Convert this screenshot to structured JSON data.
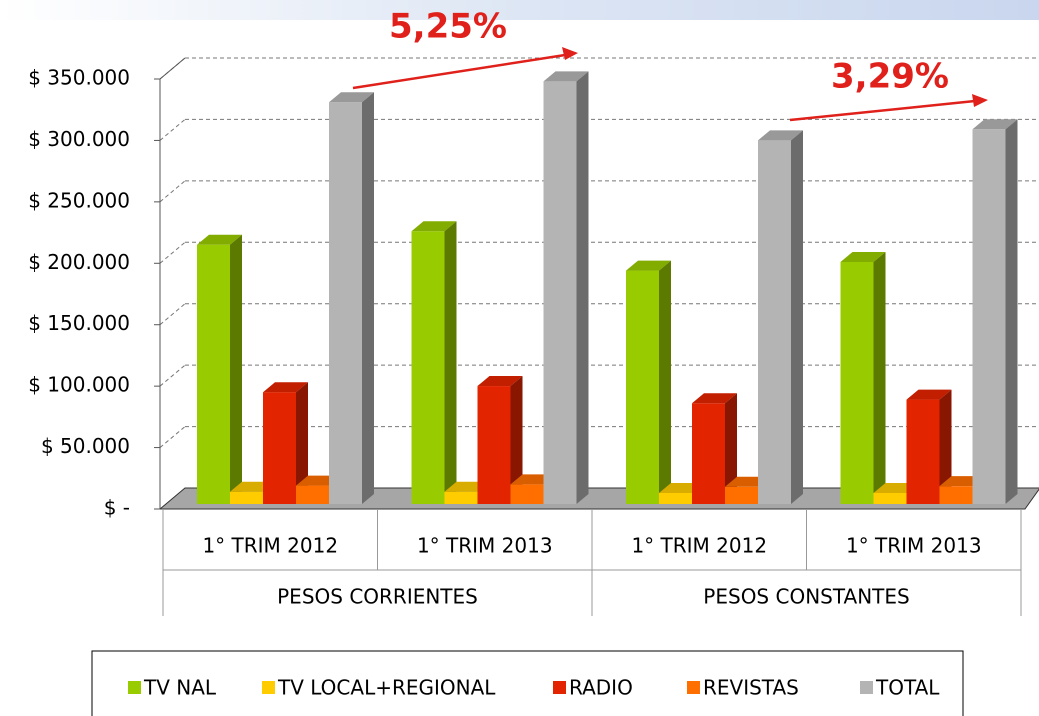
{
  "chart_data": {
    "type": "bar3d",
    "categories": [
      "1° TRIM 2012",
      "1° TRIM 2013",
      "1° TRIM 2012",
      "1° TRIM 2013"
    ],
    "groups": [
      "PESOS CORRIENTES",
      "PESOS CONSTANTES"
    ],
    "series": [
      {
        "name": "TV NAL",
        "color": "#99cc00",
        "values": [
          211000,
          222000,
          190000,
          197000
        ]
      },
      {
        "name": "TV LOCAL+REGIONAL",
        "color": "#ffcc00",
        "values": [
          10000,
          10000,
          9000,
          9000
        ]
      },
      {
        "name": "RADIO",
        "color": "#e32400",
        "values": [
          91000,
          96000,
          82000,
          85000
        ]
      },
      {
        "name": "REVISTAS",
        "color": "#ff6f00",
        "values": [
          15000,
          16000,
          14000,
          14500
        ]
      },
      {
        "name": "TOTAL",
        "color": "#b4b4b4",
        "values": [
          327000,
          344000,
          296000,
          305000
        ]
      }
    ],
    "annotations": [
      "5,25%",
      "3,29%"
    ],
    "ylim": [
      0,
      350000
    ],
    "yticks": [
      {
        "value": 0,
        "label": "$ -"
      },
      {
        "value": 50000,
        "label": "$ 50.000"
      },
      {
        "value": 100000,
        "label": "$ 100.000"
      },
      {
        "value": 150000,
        "label": "$ 150.000"
      },
      {
        "value": 200000,
        "label": "$ 200.000"
      },
      {
        "value": 250000,
        "label": "$ 250.000"
      },
      {
        "value": 300000,
        "label": "$ 300.000"
      },
      {
        "value": 350000,
        "label": "$ 350.000"
      }
    ],
    "grid": true,
    "legend": "bottom"
  }
}
